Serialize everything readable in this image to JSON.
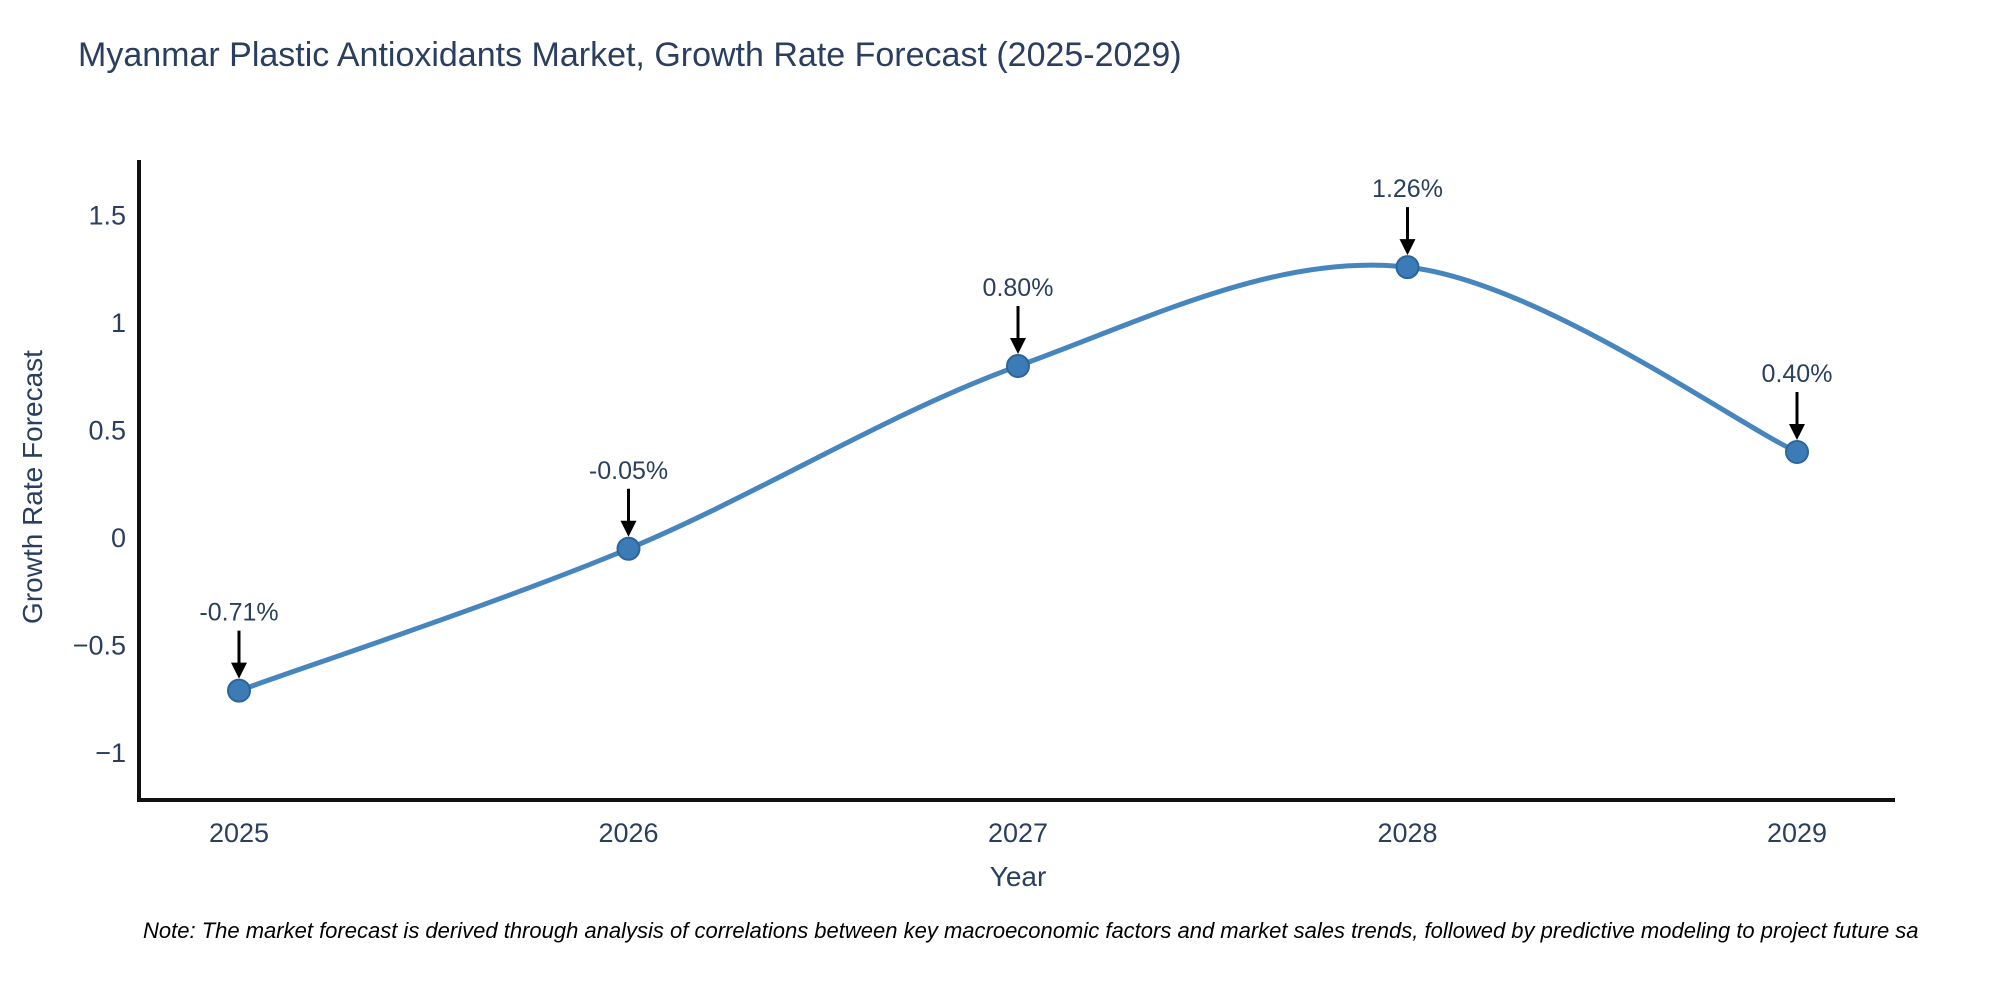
{
  "page": {
    "background": "#ffffff"
  },
  "chart_data": {
    "type": "line",
    "title": "Myanmar Plastic Antioxidants Market, Growth Rate Forecast (2025-2029)",
    "xlabel": "Year",
    "ylabel": "Growth Rate Forecast",
    "x": [
      2025,
      2026,
      2027,
      2028,
      2029
    ],
    "series": [
      {
        "name": "Growth Rate Forecast",
        "values": [
          -0.71,
          -0.05,
          0.8,
          1.26,
          0.4
        ]
      }
    ],
    "point_labels": [
      "-0.71%",
      "-0.05%",
      "0.80%",
      "1.26%",
      "0.40%"
    ],
    "x_tick_labels": [
      "2025",
      "2026",
      "2027",
      "2028",
      "2029"
    ],
    "y_ticks": [
      {
        "value": 1.5,
        "label": "1.5"
      },
      {
        "value": 1,
        "label": "1"
      },
      {
        "value": 0.5,
        "label": "0.5"
      },
      {
        "value": 0,
        "label": "0"
      },
      {
        "value": -0.5,
        "label": "−0.5"
      },
      {
        "value": -1,
        "label": "−1"
      }
    ],
    "ylim": [
      -1.26,
      1.72
    ],
    "xlim_years": [
      2024.74,
      2029.25
    ],
    "line_shape": "spline",
    "grid": false,
    "legend": "none",
    "colors": {
      "line": "#4685bd",
      "marker": "#3c7cb6",
      "marker_edge": "#2c649c",
      "axis": "#111111",
      "text": "#2a3f5f",
      "annotation_arrow": "#000000"
    }
  },
  "note": {
    "text": "Note: The market forecast is derived through analysis of correlations between key macroeconomic factors and market sales trends, followed by predictive modeling to project future sa"
  }
}
